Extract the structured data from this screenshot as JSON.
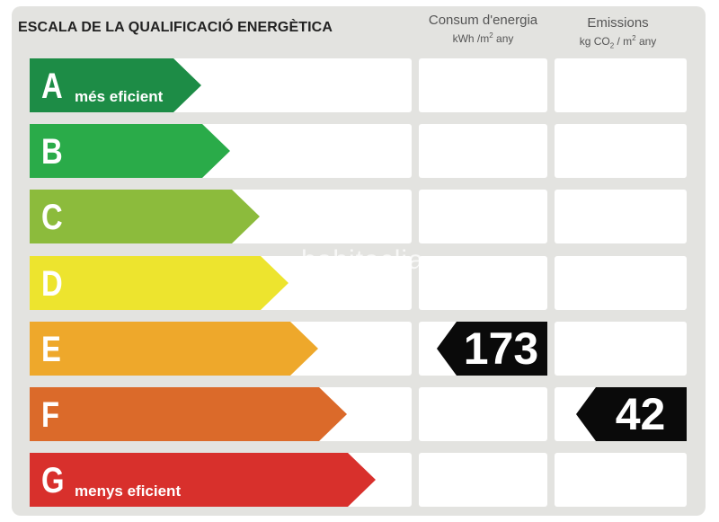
{
  "title": "ESCALA DE LA QUALIFICACIÓ ENERGÈTICA",
  "columns": {
    "energy": {
      "label": "Consum d'energia",
      "unit_pre": "kWh /m",
      "unit_sup": "2",
      "unit_post": " any"
    },
    "emissions": {
      "label": "Emissions",
      "unit_pre": "kg CO",
      "unit_sub": "2",
      "unit_mid": "  / m",
      "unit_sup": "2",
      "unit_post": "  any"
    }
  },
  "ratings": [
    {
      "letter": "A",
      "sub": "més eficient",
      "color": "#1d8c46"
    },
    {
      "letter": "B",
      "sub": "",
      "color": "#2aab49"
    },
    {
      "letter": "C",
      "sub": "",
      "color": "#8cbb3c"
    },
    {
      "letter": "D",
      "sub": "",
      "color": "#ede42e"
    },
    {
      "letter": "E",
      "sub": "",
      "color": "#eea82b"
    },
    {
      "letter": "F",
      "sub": "",
      "color": "#db6a2a"
    },
    {
      "letter": "G",
      "sub": "menys eficient",
      "color": "#d8302c"
    }
  ],
  "energy_value": {
    "rating": "E",
    "value": "173"
  },
  "emissions_value": {
    "rating": "F",
    "value": "42"
  },
  "watermark": "habitaclia"
}
